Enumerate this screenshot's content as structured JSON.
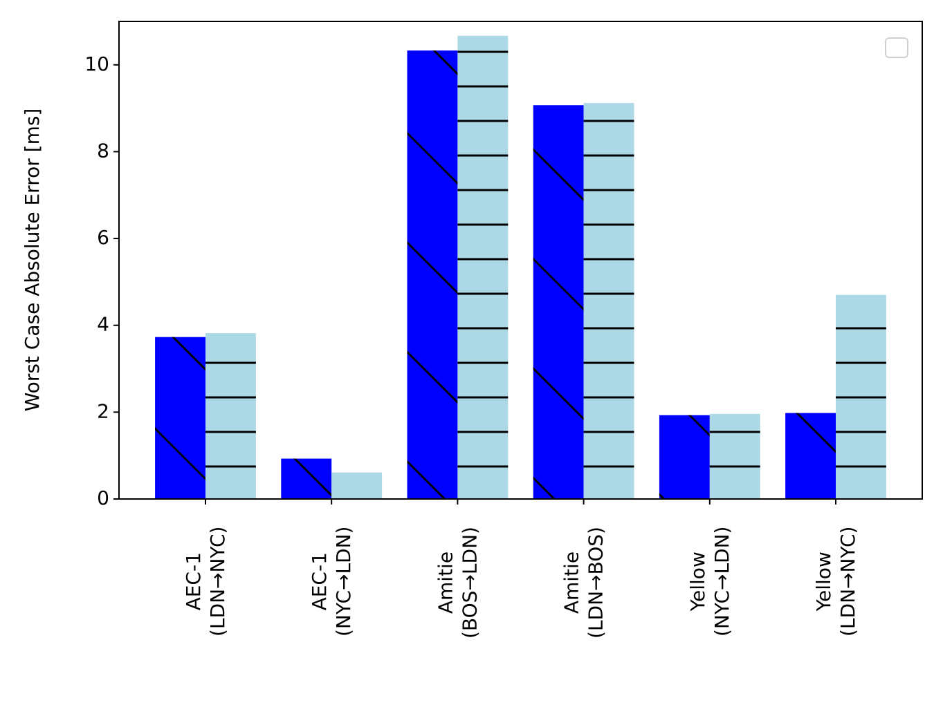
{
  "chart_data": {
    "type": "bar",
    "y_label": "Worst Case Absolute Error [ms]",
    "categories": [
      "AEC-1\n(LDN→NYC)",
      "AEC-1\n(NYC→LDN)",
      "Amitie\n(BOS→LDN)",
      "Amitie\n(LDN→BOS)",
      "Yellow\n(NYC→LDN)",
      "Yellow\n(LDN→NYC)"
    ],
    "series": [
      {
        "color": "#0000ff",
        "hatch": "\\",
        "values": [
          3.73,
          0.93,
          10.33,
          9.07,
          1.93,
          1.98
        ]
      },
      {
        "color": "#add8e6",
        "hatch": "-",
        "values": [
          3.82,
          0.61,
          10.67,
          9.12,
          1.96,
          4.7
        ]
      }
    ],
    "ylim": [
      0,
      11
    ],
    "yticks": [
      0,
      2,
      4,
      6,
      8,
      10
    ],
    "legend": "upper right"
  }
}
